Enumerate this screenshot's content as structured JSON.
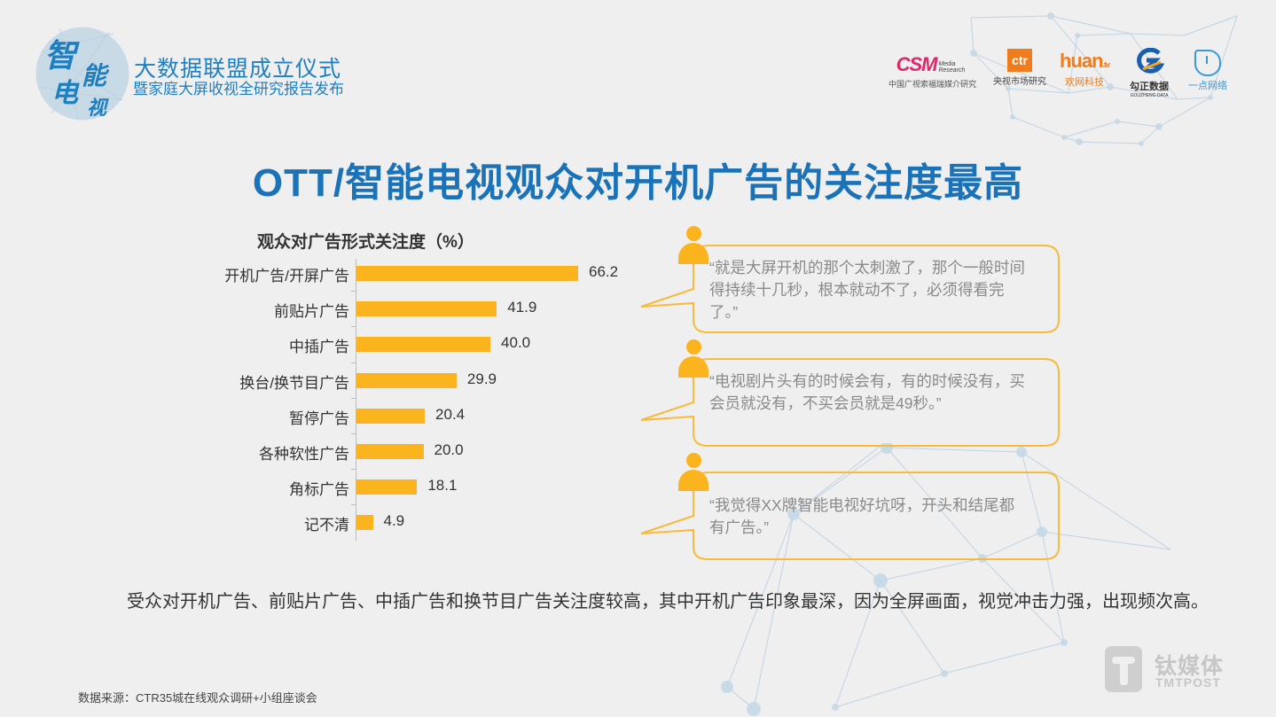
{
  "header": {
    "brand_mark_chars": [
      "智",
      "能",
      "电",
      "视"
    ],
    "event_title": "大数据联盟成立仪式",
    "event_subtitle": "暨家庭大屏收视全研究报告发布",
    "partners": [
      {
        "logo_text": "CSM",
        "logo_sub": "Media Research",
        "caption": "中国广视索福瑞媒介研究",
        "color": "#e2266b"
      },
      {
        "logo_text": "ctr",
        "caption": "央视市场研究",
        "color": "#f07c1c"
      },
      {
        "logo_text": "huan",
        "logo_sub": ".tv",
        "caption": "欢网科技",
        "color": "#f07c1c"
      },
      {
        "logo_text": "G",
        "caption": "勾正数据",
        "caption_en": "GOUZHENG DATA",
        "color": "#1a5eb0"
      },
      {
        "logo_text": "",
        "caption": "一点网络",
        "color": "#3a9ad9"
      }
    ]
  },
  "headline": "OTT/智能电视观众对开机广告的关注度最高",
  "chart_data": {
    "type": "bar",
    "orientation": "horizontal",
    "title": "观众对广告形式关注度（%）",
    "xlabel": "",
    "ylabel": "",
    "categories": [
      "开机广告/开屏广告",
      "前贴片广告",
      "中插广告",
      "换台/换节目广告",
      "暂停广告",
      "各种软性广告",
      "角标广告",
      "记不清"
    ],
    "values": [
      66.2,
      41.9,
      40.0,
      29.9,
      20.4,
      20.0,
      18.1,
      4.9
    ],
    "value_labels": [
      "66.2",
      "41.9",
      "40.0",
      "29.9",
      "20.4",
      "20.0",
      "18.1",
      "4.9"
    ],
    "bar_color": "#fbb41d",
    "grid": false,
    "legend": "none",
    "xlim": [
      0,
      70
    ]
  },
  "quotes": [
    {
      "text": "“就是大屏开机的那个太刺激了，那个一般时间得持续十几秒，根本就动不了，必须得看完了。”"
    },
    {
      "text": "“电视剧片头有的时候会有，有的时候没有，买会员就没有，不买会员就是49秒。”"
    },
    {
      "text": "“我觉得XX牌智能电视好坑呀，开头和结尾都有广告。”"
    }
  ],
  "summary": "受众对开机广告、前贴片广告、中插广告和换节目广告关注度较高，其中开机广告印象最深，因为全屏画面，视觉冲击力强，出现频次高。",
  "source": "数据来源：CTR35城在线观众调研+小组座谈会",
  "watermark": {
    "cn": "钛媒体",
    "en": "TMTPOST"
  },
  "colors": {
    "accent_blue": "#1a72b8",
    "bar_orange": "#fbb41d",
    "background": "#efefef"
  }
}
